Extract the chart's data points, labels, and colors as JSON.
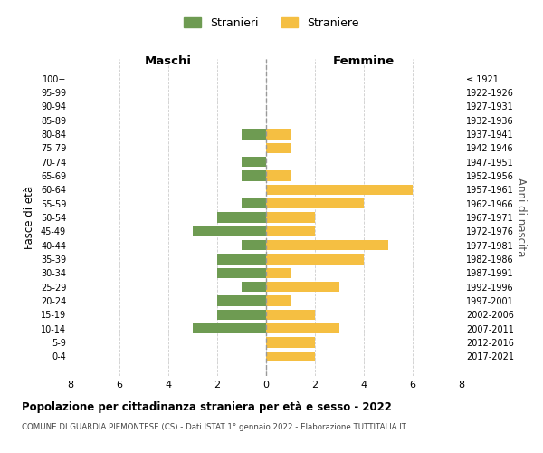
{
  "age_groups": [
    "100+",
    "95-99",
    "90-94",
    "85-89",
    "80-84",
    "75-79",
    "70-74",
    "65-69",
    "60-64",
    "55-59",
    "50-54",
    "45-49",
    "40-44",
    "35-39",
    "30-34",
    "25-29",
    "20-24",
    "15-19",
    "10-14",
    "5-9",
    "0-4"
  ],
  "birth_years": [
    "≤ 1921",
    "1922-1926",
    "1927-1931",
    "1932-1936",
    "1937-1941",
    "1942-1946",
    "1947-1951",
    "1952-1956",
    "1957-1961",
    "1962-1966",
    "1967-1971",
    "1972-1976",
    "1977-1981",
    "1982-1986",
    "1987-1991",
    "1992-1996",
    "1997-2001",
    "2002-2006",
    "2007-2011",
    "2012-2016",
    "2017-2021"
  ],
  "maschi": [
    0,
    0,
    0,
    0,
    1,
    0,
    1,
    1,
    0,
    1,
    2,
    3,
    1,
    2,
    2,
    1,
    2,
    2,
    3,
    0,
    0
  ],
  "femmine": [
    0,
    0,
    0,
    0,
    1,
    1,
    0,
    1,
    6,
    4,
    2,
    2,
    5,
    4,
    1,
    3,
    1,
    2,
    3,
    2,
    2
  ],
  "maschi_color": "#6e9b52",
  "femmine_color": "#f5bf42",
  "background_color": "#ffffff",
  "grid_color": "#cccccc",
  "title": "Popolazione per cittadinanza straniera per età e sesso - 2022",
  "subtitle": "COMUNE DI GUARDIA PIEMONTESE (CS) - Dati ISTAT 1° gennaio 2022 - Elaborazione TUTTITALIA.IT",
  "xlabel_left": "Maschi",
  "xlabel_right": "Femmine",
  "ylabel": "Fasce di età",
  "ylabel_right": "Anni di nascita",
  "legend_maschi": "Stranieri",
  "legend_femmine": "Straniere",
  "xlim": 8,
  "dashed_line_color": "#999999"
}
